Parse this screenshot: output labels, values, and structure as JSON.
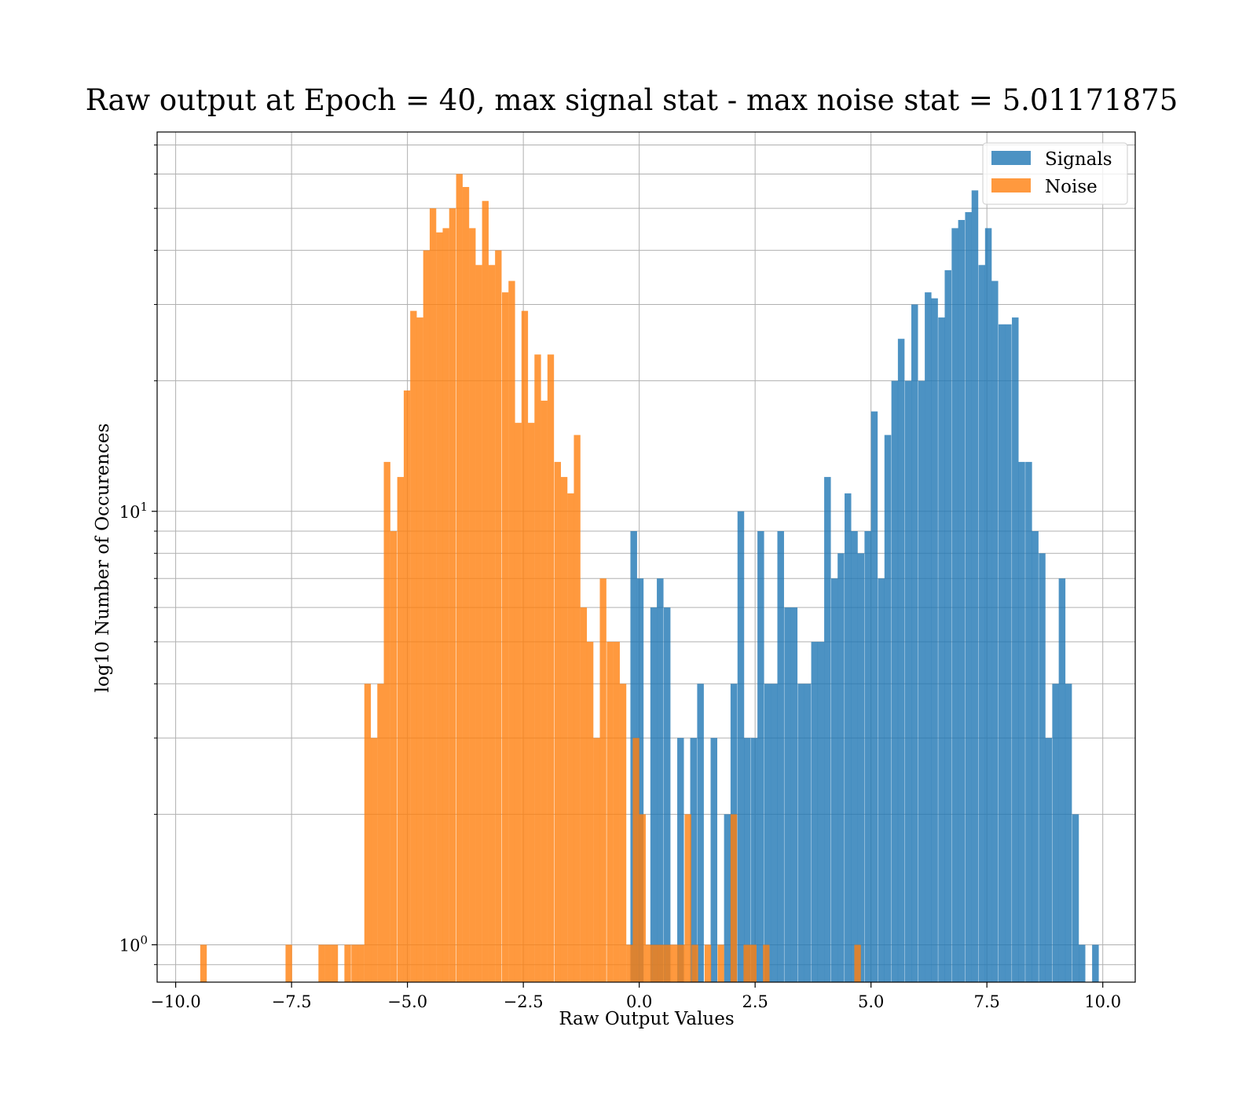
{
  "chart_data": {
    "type": "bar",
    "title": "Raw output at Epoch = 40, max signal stat - max noise stat = 5.01171875",
    "xlabel": "Raw Output Values",
    "ylabel": "log10 Number of Occurences",
    "xlim": [
      -10.4,
      10.7
    ],
    "ylim": [
      0.82,
      75
    ],
    "yscale": "log",
    "grid": true,
    "legend_position": "top-right",
    "x_ticks": [
      -10.0,
      -7.5,
      -5.0,
      -2.5,
      0.0,
      2.5,
      5.0,
      7.5,
      10.0
    ],
    "x_tick_labels": [
      "−10.0",
      "−7.5",
      "−5.0",
      "−2.5",
      "0.0",
      "2.5",
      "5.0",
      "7.5",
      "10.0"
    ],
    "y_ticks": [
      1,
      10
    ],
    "y_tick_labels": [
      {
        "base": "10",
        "exp": "0"
      },
      {
        "base": "10",
        "exp": "1"
      }
    ],
    "y_minor_ticks": [
      0.9,
      2,
      3,
      4,
      5,
      6,
      7,
      8,
      9,
      20,
      30,
      40,
      50,
      60,
      70
    ],
    "series": [
      {
        "name": "Signals",
        "color": "#1f77b4",
        "opacity": 0.8,
        "bin_width": 0.1437,
        "bins": [
          [
            -0.19,
            9
          ],
          [
            -0.05,
            7
          ],
          [
            0.24,
            6
          ],
          [
            0.38,
            7
          ],
          [
            0.53,
            6
          ],
          [
            0.82,
            3
          ],
          [
            1.1,
            3
          ],
          [
            1.25,
            4
          ],
          [
            1.54,
            3
          ],
          [
            1.83,
            2
          ],
          [
            1.97,
            4
          ],
          [
            2.12,
            10
          ],
          [
            2.26,
            3
          ],
          [
            2.41,
            3
          ],
          [
            2.55,
            9
          ],
          [
            2.7,
            4
          ],
          [
            2.84,
            4
          ],
          [
            2.98,
            9
          ],
          [
            3.13,
            6
          ],
          [
            3.27,
            6
          ],
          [
            3.42,
            4
          ],
          [
            3.56,
            4
          ],
          [
            3.71,
            5
          ],
          [
            3.85,
            5
          ],
          [
            3.99,
            12
          ],
          [
            4.14,
            7
          ],
          [
            4.28,
            8
          ],
          [
            4.43,
            11
          ],
          [
            4.57,
            9
          ],
          [
            4.71,
            8
          ],
          [
            4.86,
            9
          ],
          [
            5.0,
            17
          ],
          [
            5.15,
            7
          ],
          [
            5.29,
            15
          ],
          [
            5.44,
            20
          ],
          [
            5.58,
            25
          ],
          [
            5.73,
            20
          ],
          [
            5.87,
            30
          ],
          [
            6.02,
            20
          ],
          [
            6.16,
            32
          ],
          [
            6.3,
            31
          ],
          [
            6.45,
            28
          ],
          [
            6.59,
            36
          ],
          [
            6.74,
            45
          ],
          [
            6.88,
            47
          ],
          [
            7.03,
            49
          ],
          [
            7.17,
            55
          ],
          [
            7.32,
            37
          ],
          [
            7.46,
            45
          ],
          [
            7.6,
            34
          ],
          [
            7.75,
            27
          ],
          [
            7.89,
            27
          ],
          [
            8.04,
            28
          ],
          [
            8.18,
            13
          ],
          [
            8.33,
            13
          ],
          [
            8.47,
            9
          ],
          [
            8.62,
            8
          ],
          [
            8.76,
            3
          ],
          [
            8.91,
            4
          ],
          [
            9.05,
            7
          ],
          [
            9.19,
            4
          ],
          [
            9.34,
            2
          ],
          [
            9.48,
            1
          ],
          [
            9.77,
            1
          ]
        ]
      },
      {
        "name": "Noise",
        "color": "#ff7f0e",
        "opacity": 0.8,
        "bin_width": 0.1413,
        "bins": [
          [
            -9.47,
            1
          ],
          [
            -7.63,
            1
          ],
          [
            -6.92,
            1
          ],
          [
            -6.78,
            1
          ],
          [
            -6.64,
            1
          ],
          [
            -6.36,
            1
          ],
          [
            -6.21,
            1
          ],
          [
            -6.07,
            1
          ],
          [
            -5.93,
            4
          ],
          [
            -5.79,
            3
          ],
          [
            -5.65,
            4
          ],
          [
            -5.51,
            13
          ],
          [
            -5.37,
            9
          ],
          [
            -5.22,
            12
          ],
          [
            -5.08,
            19
          ],
          [
            -4.94,
            29
          ],
          [
            -4.8,
            28
          ],
          [
            -4.66,
            40
          ],
          [
            -4.52,
            50
          ],
          [
            -4.38,
            44
          ],
          [
            -4.24,
            45
          ],
          [
            -4.1,
            50
          ],
          [
            -3.95,
            60
          ],
          [
            -3.81,
            56
          ],
          [
            -3.67,
            45
          ],
          [
            -3.53,
            37
          ],
          [
            -3.39,
            52
          ],
          [
            -3.25,
            37
          ],
          [
            -3.11,
            40
          ],
          [
            -2.96,
            32
          ],
          [
            -2.82,
            34
          ],
          [
            -2.68,
            16
          ],
          [
            -2.54,
            29
          ],
          [
            -2.4,
            16
          ],
          [
            -2.26,
            23
          ],
          [
            -2.12,
            18
          ],
          [
            -1.98,
            23
          ],
          [
            -1.83,
            13
          ],
          [
            -1.69,
            12
          ],
          [
            -1.55,
            11
          ],
          [
            -1.41,
            15
          ],
          [
            -1.27,
            6
          ],
          [
            -1.13,
            5
          ],
          [
            -0.99,
            3
          ],
          [
            -0.85,
            7
          ],
          [
            -0.7,
            5
          ],
          [
            -0.56,
            5
          ],
          [
            -0.42,
            4
          ],
          [
            -0.28,
            1
          ],
          [
            -0.14,
            3
          ],
          [
            0.0,
            2
          ],
          [
            0.14,
            1
          ],
          [
            0.28,
            1
          ],
          [
            0.42,
            1
          ],
          [
            0.56,
            1
          ],
          [
            0.7,
            1
          ],
          [
            0.84,
            1
          ],
          [
            0.98,
            2
          ],
          [
            1.13,
            1
          ],
          [
            1.41,
            1
          ],
          [
            1.69,
            1
          ],
          [
            1.97,
            2
          ],
          [
            2.25,
            1
          ],
          [
            2.39,
            1
          ],
          [
            2.67,
            1
          ],
          [
            4.64,
            1
          ]
        ]
      }
    ]
  }
}
